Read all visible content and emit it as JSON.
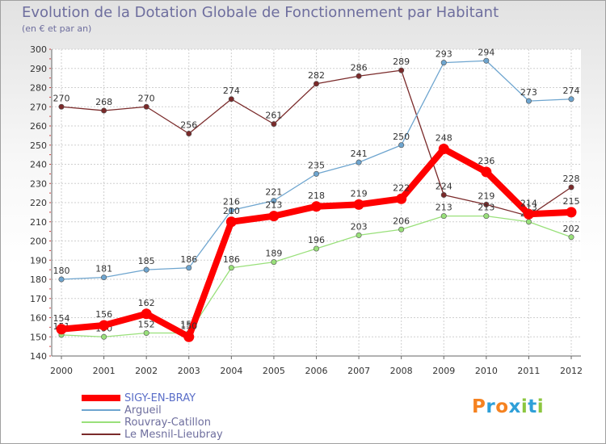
{
  "header": {
    "title": "Evolution de la Dotation Globale de Fonctionnement par Habitant",
    "subtitle": "(en € et par an)"
  },
  "logo": {
    "text": "Proxiti",
    "letters": [
      "P",
      "r",
      "o",
      "x",
      "i",
      "t",
      "i"
    ],
    "colors": [
      "#f58220",
      "#2e9fd8",
      "#f58220",
      "#2e9fd8",
      "#8cc63f",
      "#2e9fd8",
      "#8cc63f"
    ]
  },
  "chart_data": {
    "type": "line",
    "title": "Evolution de la Dotation Globale de Fonctionnement par Habitant",
    "subtitle": "(en € et par an)",
    "xlabel": "",
    "ylabel": "",
    "categories": [
      "2000",
      "2001",
      "2002",
      "2003",
      "2004",
      "2005",
      "2006",
      "2007",
      "2008",
      "2009",
      "2010",
      "2011",
      "2012"
    ],
    "ylim": [
      140,
      300
    ],
    "ytick_step": 10,
    "grid": true,
    "legend_position": "bottom-left",
    "series": [
      {
        "name": "Le Mesnil-Lieubray",
        "color": "#7a2a2a",
        "emphasis": false,
        "values": [
          270,
          268,
          270,
          256,
          274,
          261,
          282,
          286,
          289,
          224,
          219,
          213,
          228
        ]
      },
      {
        "name": "Rouvray-Catillon",
        "color": "#99e07a",
        "emphasis": false,
        "values": [
          151,
          150,
          152,
          152,
          186,
          189,
          196,
          203,
          206,
          213,
          213,
          210,
          202
        ]
      },
      {
        "name": "Argueil",
        "color": "#6ea5cf",
        "emphasis": false,
        "values": [
          180,
          181,
          185,
          186,
          216,
          221,
          235,
          241,
          250,
          293,
          294,
          273,
          274
        ]
      },
      {
        "name": "SIGY-EN-BRAY",
        "color": "#ff0000",
        "emphasis": true,
        "values": [
          154,
          156,
          162,
          150,
          210,
          213,
          218,
          219,
          222,
          248,
          236,
          214,
          215
        ]
      }
    ],
    "legend_order": [
      "SIGY-EN-BRAY",
      "Argueil",
      "Rouvray-Catillon",
      "Le Mesnil-Lieubray"
    ]
  }
}
